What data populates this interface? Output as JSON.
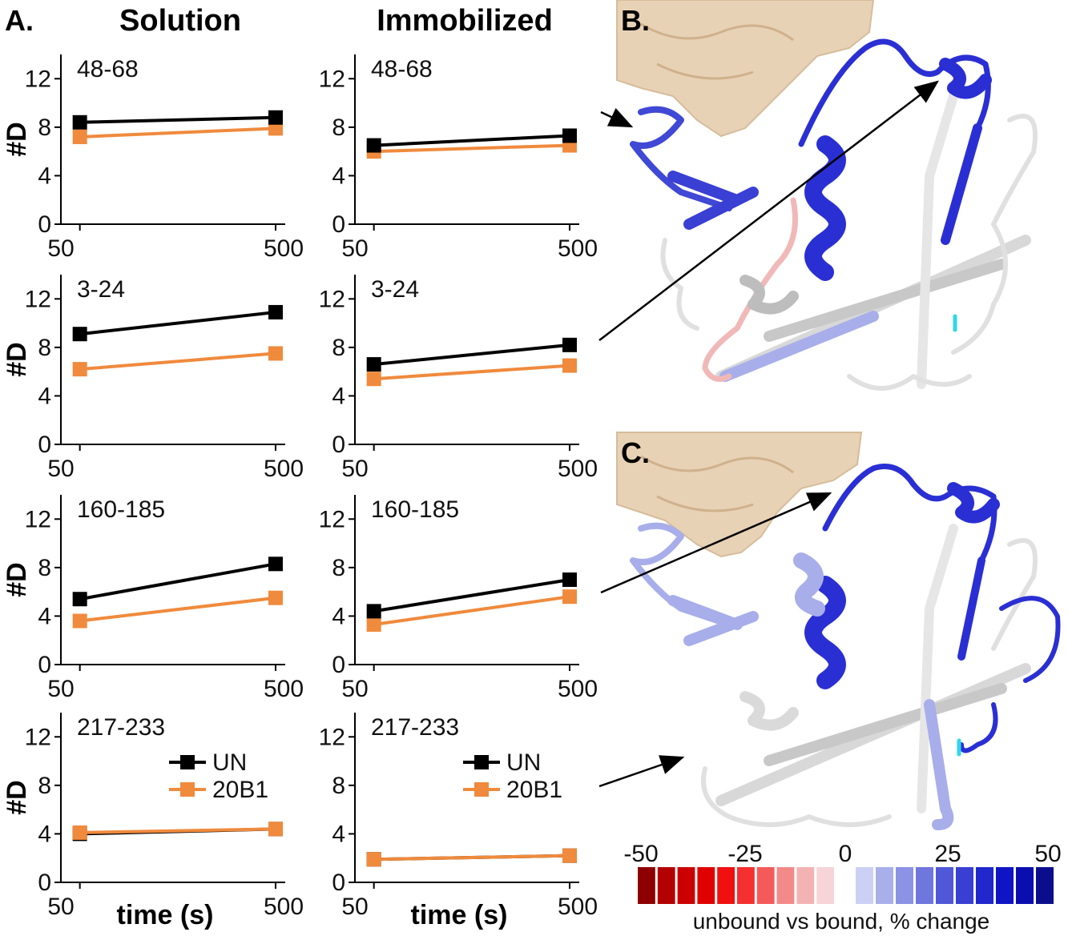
{
  "panel_labels": {
    "a": "A.",
    "b": "B.",
    "c": "C."
  },
  "columns": [
    "Solution",
    "Immobilized"
  ],
  "ylabel": "#D",
  "xlabel": "time (s)",
  "colors": {
    "UN": "#000000",
    "20B1": "#F08A3C",
    "protein_surface": "#E8D2B6",
    "blue": "#2A2FD4",
    "light_blue": "#A7AEEA",
    "pink": "#F1B8B8",
    "cyan": "#2ED8E8"
  },
  "chart_data": [
    {
      "type": "line",
      "column": "Solution",
      "title": "48-68",
      "x": [
        50,
        500
      ],
      "xticks": [
        "50",
        "500"
      ],
      "yticks": [
        "0",
        "4",
        "8",
        "12"
      ],
      "ylim": [
        0,
        14
      ],
      "series": [
        {
          "name": "UN",
          "values": [
            8.4,
            8.8
          ]
        },
        {
          "name": "20B1",
          "values": [
            7.2,
            7.9
          ]
        }
      ]
    },
    {
      "type": "line",
      "column": "Immobilized",
      "title": "48-68",
      "x": [
        50,
        500
      ],
      "xticks": [
        "50",
        "500"
      ],
      "yticks": [
        "0",
        "4",
        "8",
        "12"
      ],
      "ylim": [
        0,
        14
      ],
      "series": [
        {
          "name": "UN",
          "values": [
            6.5,
            7.3
          ]
        },
        {
          "name": "20B1",
          "values": [
            6.0,
            6.5
          ]
        }
      ]
    },
    {
      "type": "line",
      "column": "Solution",
      "title": "3-24",
      "x": [
        50,
        500
      ],
      "xticks": [
        "50",
        "500"
      ],
      "yticks": [
        "0",
        "4",
        "8",
        "12"
      ],
      "ylim": [
        0,
        14
      ],
      "series": [
        {
          "name": "UN",
          "values": [
            9.1,
            10.9
          ]
        },
        {
          "name": "20B1",
          "values": [
            6.2,
            7.5
          ]
        }
      ]
    },
    {
      "type": "line",
      "column": "Immobilized",
      "title": "3-24",
      "x": [
        50,
        500
      ],
      "xticks": [
        "50",
        "500"
      ],
      "yticks": [
        "0",
        "4",
        "8",
        "12"
      ],
      "ylim": [
        0,
        14
      ],
      "series": [
        {
          "name": "UN",
          "values": [
            6.6,
            8.2
          ]
        },
        {
          "name": "20B1",
          "values": [
            5.4,
            6.5
          ]
        }
      ]
    },
    {
      "type": "line",
      "column": "Solution",
      "title": "160-185",
      "x": [
        50,
        500
      ],
      "xticks": [
        "50",
        "500"
      ],
      "yticks": [
        "0",
        "4",
        "8",
        "12"
      ],
      "ylim": [
        0,
        14
      ],
      "series": [
        {
          "name": "UN",
          "values": [
            5.4,
            8.3
          ]
        },
        {
          "name": "20B1",
          "values": [
            3.6,
            5.5
          ]
        }
      ]
    },
    {
      "type": "line",
      "column": "Immobilized",
      "title": "160-185",
      "x": [
        50,
        500
      ],
      "xticks": [
        "50",
        "500"
      ],
      "yticks": [
        "0",
        "4",
        "8",
        "12"
      ],
      "ylim": [
        0,
        14
      ],
      "series": [
        {
          "name": "UN",
          "values": [
            4.4,
            7.0
          ]
        },
        {
          "name": "20B1",
          "values": [
            3.3,
            5.6
          ]
        }
      ]
    },
    {
      "type": "line",
      "column": "Solution",
      "title": "217-233",
      "x": [
        50,
        500
      ],
      "xticks": [
        "50",
        "500"
      ],
      "yticks": [
        "0",
        "4",
        "8",
        "12"
      ],
      "ylim": [
        0,
        14
      ],
      "legend": "right",
      "series": [
        {
          "name": "UN",
          "values": [
            4.0,
            4.4
          ]
        },
        {
          "name": "20B1",
          "values": [
            4.1,
            4.4
          ]
        }
      ]
    },
    {
      "type": "line",
      "column": "Immobilized",
      "title": "217-233",
      "x": [
        50,
        500
      ],
      "xticks": [
        "50",
        "500"
      ],
      "yticks": [
        "0",
        "4",
        "8",
        "12"
      ],
      "ylim": [
        0,
        14
      ],
      "legend": "right",
      "series": [
        {
          "name": "UN",
          "values": [
            1.9,
            2.2
          ]
        },
        {
          "name": "20B1",
          "values": [
            1.9,
            2.2
          ]
        }
      ]
    }
  ],
  "colorbar": {
    "ticks": [
      "-50",
      "-25",
      "0",
      "25",
      "50"
    ],
    "label": "unbound vs bound, % change",
    "negative_colors": [
      "#8E0000",
      "#B30000",
      "#CC0000",
      "#E00000",
      "#F01010",
      "#F53030",
      "#F55A5A",
      "#F38A8A",
      "#F3B3B3",
      "#F6D4D8"
    ],
    "positive_colors": [
      "#CCD0F4",
      "#A9AFEA",
      "#8C92E4",
      "#6F76DD",
      "#5158D7",
      "#383FD2",
      "#2027CC",
      "#0F14C4",
      "#0A0EAE",
      "#0B0E8C"
    ]
  }
}
